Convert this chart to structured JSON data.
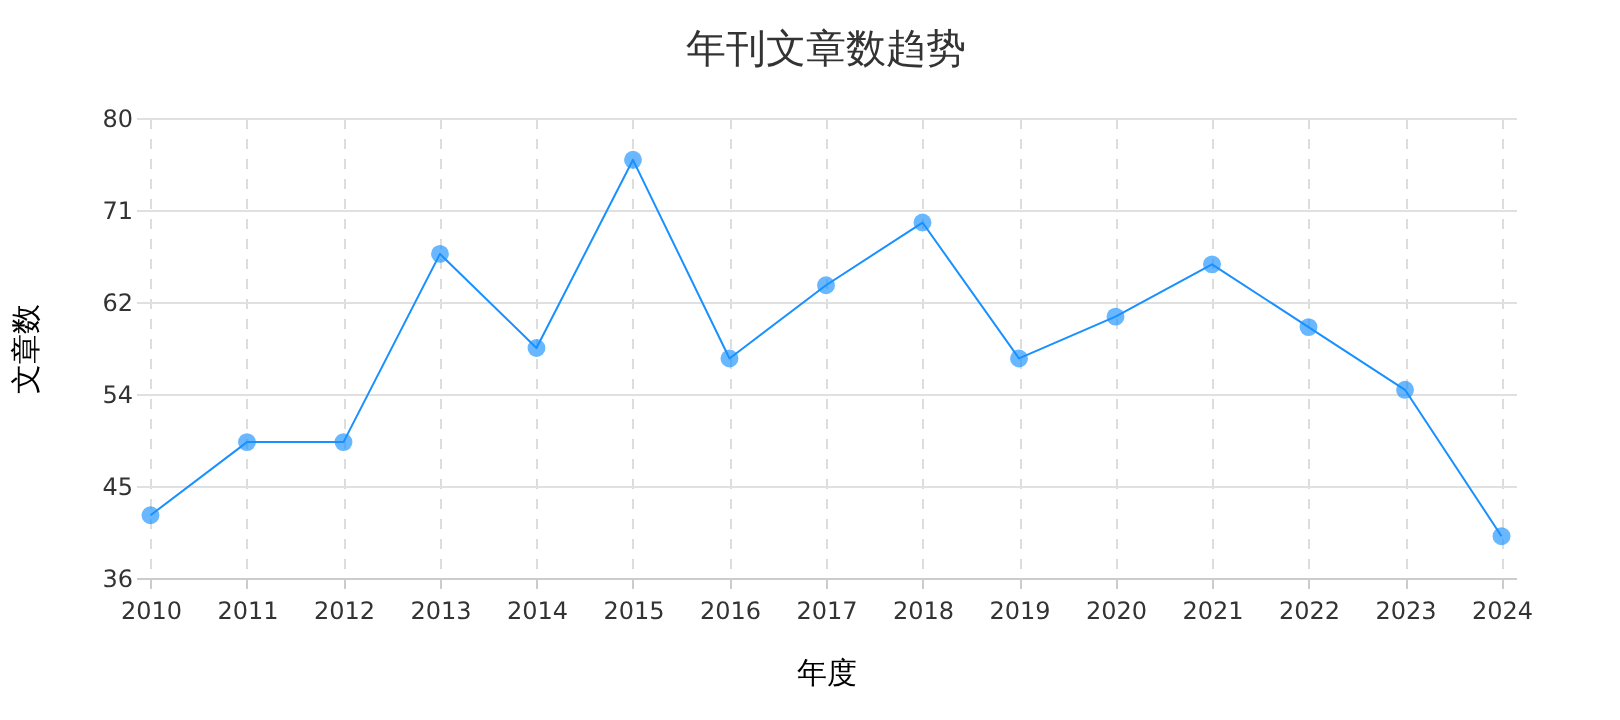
{
  "chart_data": {
    "type": "line",
    "title": "年刊文章数趋势",
    "xlabel": "年度",
    "ylabel": "文章数",
    "categories": [
      "2010",
      "2011",
      "2012",
      "2013",
      "2014",
      "2015",
      "2016",
      "2017",
      "2018",
      "2019",
      "2020",
      "2021",
      "2022",
      "2023",
      "2024"
    ],
    "series": [
      {
        "color": "#1890ff",
        "values": [
          42,
          49,
          49,
          67,
          58,
          76,
          57,
          64,
          70,
          57,
          61,
          66,
          60,
          54,
          40
        ]
      }
    ],
    "ylim": [
      36,
      80
    ],
    "yticks": [
      36,
      {
        "value": 44.8,
        "label": "45"
      },
      {
        "value": 53.6,
        "label": "54"
      },
      {
        "value": 62.4,
        "label": "62"
      },
      {
        "value": 71.2,
        "label": "71"
      },
      80
    ],
    "grid": true,
    "marker": "circle",
    "line_style": "solid"
  }
}
